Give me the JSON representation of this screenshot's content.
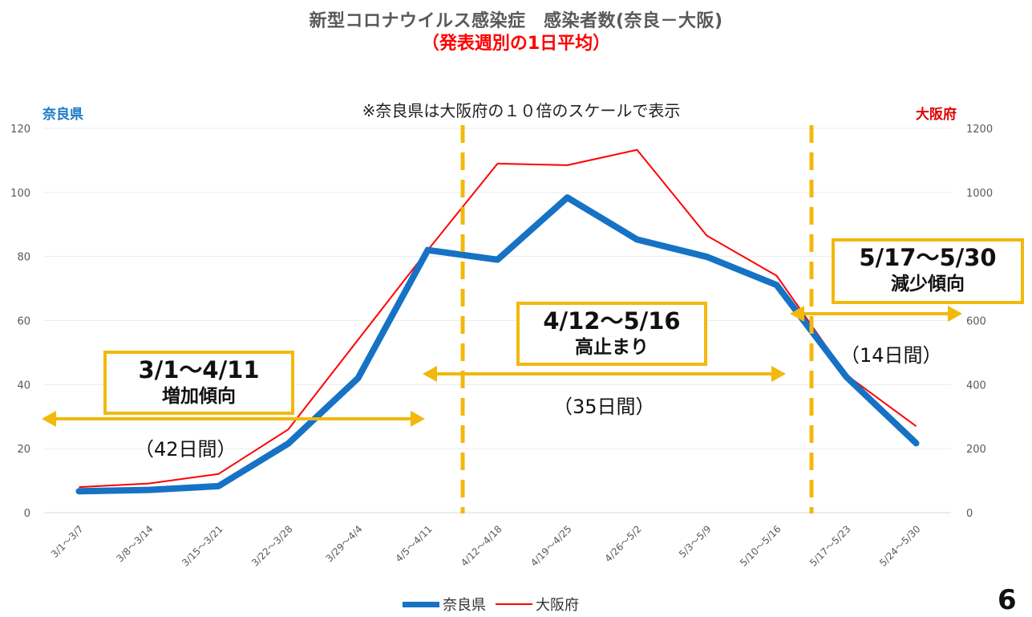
{
  "title": "新型コロナウイルス感染症　感染者数(奈良－大阪)",
  "subtitle": "（発表週別の1日平均）",
  "note": "※奈良県は大阪府の１０倍のスケールで表示",
  "left_axis_title": "奈良県",
  "right_axis_title": "大阪府",
  "page_number": "6",
  "colors": {
    "nara": "#1672c4",
    "osaka": "#ff0000",
    "annotation": "#f2b80c"
  },
  "annotations": [
    {
      "range": "3/1〜4/11",
      "trend": "増加傾向",
      "days": "（42日間）"
    },
    {
      "range": "4/12〜5/16",
      "trend": "高止まり",
      "days": "（35日間）"
    },
    {
      "range": "5/17〜5/30",
      "trend": "減少傾向",
      "days": "（14日間）"
    }
  ],
  "chart_data": {
    "type": "line",
    "categories": [
      "3/1～3/7",
      "3/8～3/14",
      "3/15～3/21",
      "3/22～3/28",
      "3/29～4/4",
      "4/5～4/11",
      "4/12～4/18",
      "4/19～4/25",
      "4/26～5/2",
      "5/3～5/9",
      "5/10～5/16",
      "5/17～5/23",
      "5/24～5/30"
    ],
    "series": [
      {
        "name": "奈良県",
        "axis": "left",
        "values": [
          6.7,
          7.1,
          8.3,
          21.6,
          42,
          82,
          79,
          98.4,
          85.3,
          79.9,
          71.1,
          42.4,
          21.7
        ]
      },
      {
        "name": "大阪府",
        "axis": "right",
        "values": [
          80,
          91,
          121,
          260,
          540,
          820,
          1090,
          1085,
          1133,
          865,
          740,
          430,
          270
        ]
      }
    ],
    "y_left": {
      "range": [
        0,
        120
      ],
      "ticks": [
        "0",
        "20",
        "40",
        "60",
        "80",
        "100",
        "120"
      ]
    },
    "y_right": {
      "range": [
        0,
        1200
      ],
      "ticks": [
        "0",
        "200",
        "400",
        "600",
        "800",
        "1000",
        "1200"
      ]
    },
    "grid": true,
    "legend_position": "bottom"
  }
}
